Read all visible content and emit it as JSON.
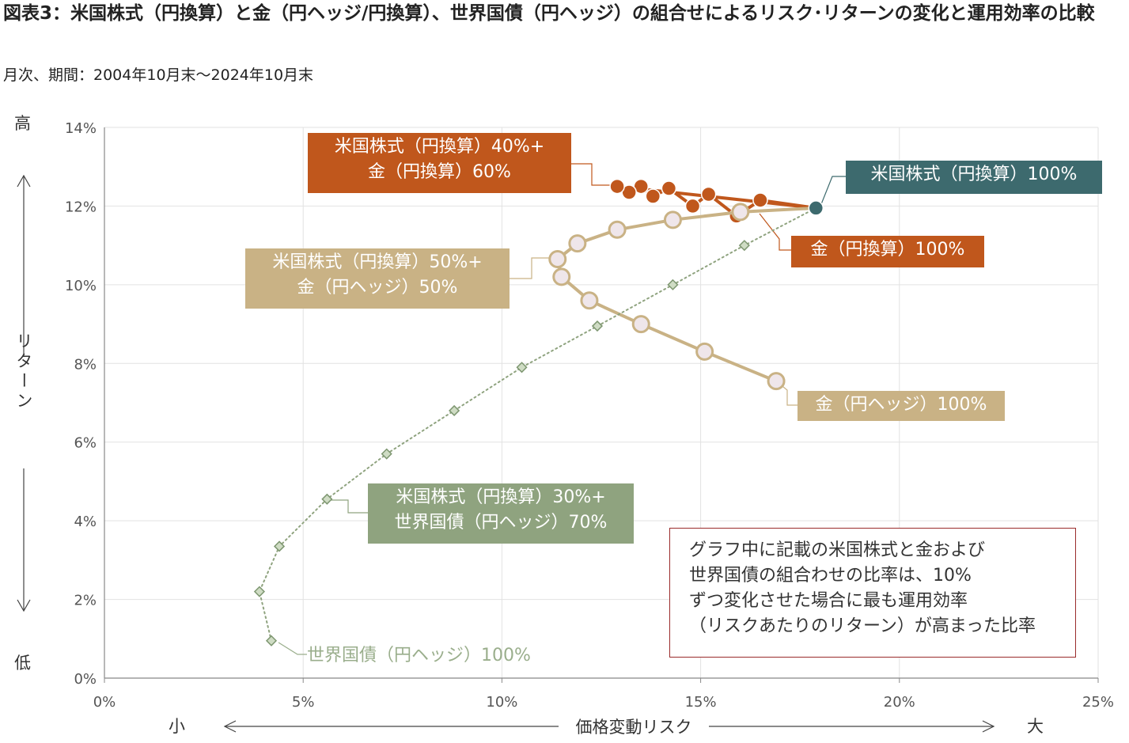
{
  "title": "図表3：米国株式（円換算）と金（円ヘッジ/円換算）、世界国債（円ヘッジ）の組合せによるリスク･リターンの変化と運用効率の比較",
  "subtitle": "月次、期間：2004年10月末～2024年10月末",
  "y_axis": {
    "label": "リターン",
    "high": "高",
    "low": "低"
  },
  "x_axis": {
    "label": "価格変動リスク",
    "small": "小",
    "large": "大"
  },
  "note": [
    "グラフ中に記載の米国株式と金および",
    "世界国債の組合わせの比率は、10%",
    "ずつ変化させた場合に最も運用効率",
    "（リスクあたりのリターン）が高まった比率"
  ],
  "labels": {
    "us_gold_yen": [
      "米国株式（円換算）40%+",
      "金（円換算）60%"
    ],
    "us_equity_100": "米国株式（円換算）100%",
    "gold_yen_100": "金（円換算）100%",
    "us_gold_hedged": [
      "米国株式（円換算）50%+",
      "金（円ヘッジ）50%"
    ],
    "gold_hedged_100": "金（円ヘッジ）100%",
    "us_bond": [
      "米国株式（円換算）30%+",
      "世界国債（円ヘッジ）70%"
    ],
    "bond_hedged_100": "世界国債（円ヘッジ）100%"
  },
  "colors": {
    "gold_yen": "#c0571c",
    "gold_hedged": "#c9b285",
    "bond": "#8fa37f",
    "us_equity": "#3d6a6e",
    "note_border": "#9a2b2b"
  },
  "chart_data": {
    "type": "line",
    "xlim": [
      0,
      25
    ],
    "ylim": [
      0,
      14
    ],
    "x_ticks": [
      "0%",
      "5%",
      "10%",
      "15%",
      "20%",
      "25%"
    ],
    "y_ticks": [
      "0%",
      "2%",
      "4%",
      "6%",
      "8%",
      "10%",
      "12%",
      "14%"
    ],
    "grid": true,
    "series": [
      {
        "name": "米国株式（円換算）+ 金（円換算）",
        "color": "#c0571c",
        "marker": "circle",
        "x": [
          17.9,
          16.5,
          15.9,
          15.2,
          14.8,
          14.2,
          13.8,
          13.5,
          13.2,
          12.9,
          17.9
        ],
        "y": [
          11.95,
          12.15,
          11.75,
          12.3,
          12.0,
          12.45,
          12.25,
          12.5,
          12.35,
          12.5,
          11.95
        ],
        "closed_shape": true
      },
      {
        "name": "米国株式（円換算）+ 金（円ヘッジ）",
        "color": "#c9b285",
        "marker": "open-circle",
        "x": [
          17.9,
          16.0,
          14.3,
          12.9,
          11.9,
          11.4,
          11.5,
          12.2,
          13.5,
          15.1,
          16.9
        ],
        "y": [
          11.95,
          11.85,
          11.65,
          11.4,
          11.05,
          10.65,
          10.2,
          9.6,
          9.0,
          8.3,
          7.55
        ]
      },
      {
        "name": "米国株式（円換算）+ 世界国債（円ヘッジ）",
        "color": "#8fa37f",
        "marker": "diamond",
        "x": [
          17.9,
          16.1,
          14.3,
          12.4,
          10.5,
          8.8,
          7.1,
          5.6,
          4.4,
          3.9,
          4.2
        ],
        "y": [
          11.95,
          11.0,
          10.0,
          8.95,
          7.9,
          6.8,
          5.7,
          4.55,
          3.35,
          2.2,
          0.95
        ]
      }
    ],
    "highlight": {
      "name": "米国株式（円換算）100%",
      "x": 17.9,
      "y": 11.95
    }
  }
}
